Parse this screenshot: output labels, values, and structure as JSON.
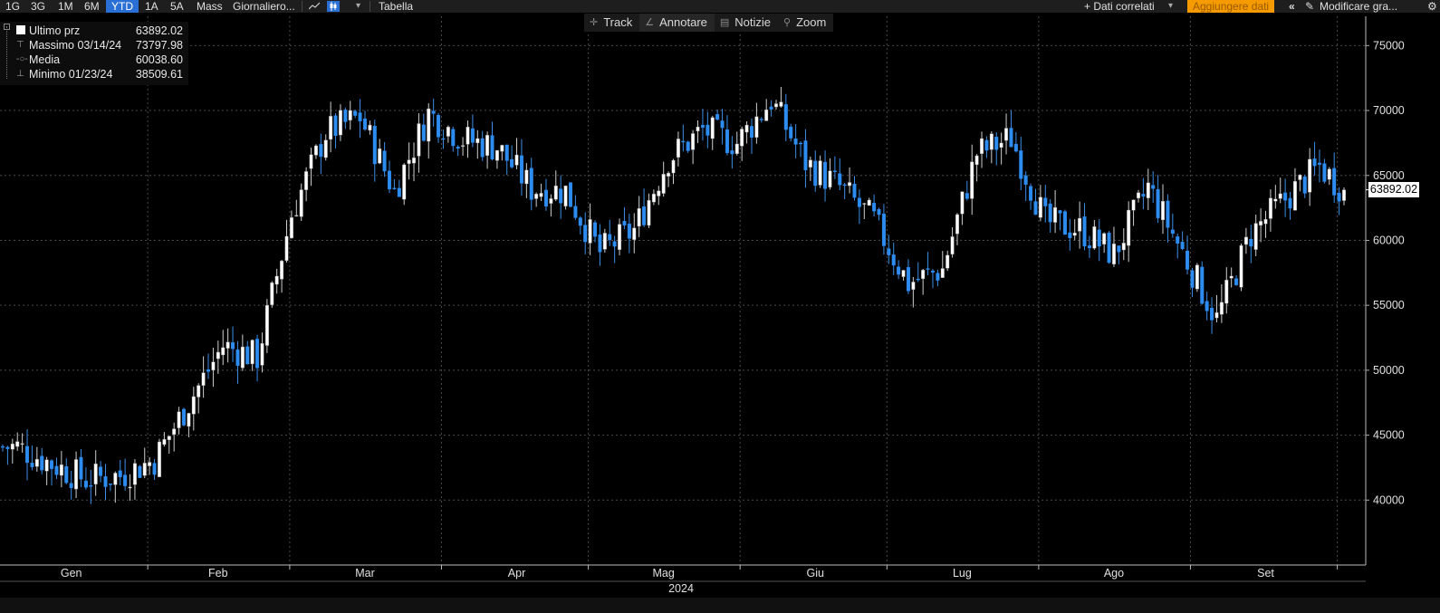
{
  "topbar": {
    "periods": [
      "1G",
      "3G",
      "1M",
      "6M",
      "YTD",
      "1A",
      "5A",
      "Mass"
    ],
    "selected_period": "YTD",
    "frequency": "Giornaliero...",
    "dropdown_caret": "▾",
    "table": "Tabella",
    "related_data": "+ Dati correlati",
    "add_data": "Aggiungere dati",
    "edit_chart": "Modificare gra...",
    "icons": [
      "line-chart-icon",
      "candlestick-icon",
      "collapse-icon",
      "pencil-icon",
      "gear-icon"
    ]
  },
  "toolbar": {
    "items": [
      {
        "label": "Track",
        "icon": "crosshair-icon"
      },
      {
        "label": "Annotare",
        "icon": "pen-icon"
      },
      {
        "label": "Notizie",
        "icon": "news-icon"
      },
      {
        "label": "Zoom",
        "icon": "magnifier-icon"
      }
    ]
  },
  "legend": {
    "last_label": "Ultimo prz",
    "last_value": "63892.02",
    "high_label": "Massimo 03/14/24",
    "high_value": "73797.98",
    "avg_label": "Media",
    "avg_value": "60038.60",
    "low_label": "Minimo 01/23/24",
    "low_value": "38509.61"
  },
  "last_price_box": "63892.02",
  "colors": {
    "up": "#ffffff",
    "down": "#2d8cf0",
    "grid": "#4a4a4a",
    "background": "#000000"
  },
  "chart_data": {
    "type": "candlestick",
    "y_ticks": [
      40000,
      45000,
      50000,
      55000,
      60000,
      65000,
      70000,
      75000
    ],
    "ylim": [
      35000,
      76000
    ],
    "month_labels": [
      "Gen",
      "Feb",
      "Mar",
      "Apr",
      "Mag",
      "Giu",
      "Lug",
      "Ago",
      "Set"
    ],
    "year_label": "2024",
    "grid": true,
    "last_price": 63892.02,
    "weekly_closes": [
      [
        "01-05",
        44100
      ],
      [
        "01-12",
        42800
      ],
      [
        "01-19",
        41600
      ],
      [
        "01-26",
        41900
      ],
      [
        "02-02",
        43100
      ],
      [
        "02-09",
        47500
      ],
      [
        "02-16",
        51900
      ],
      [
        "02-23",
        51000
      ],
      [
        "03-01",
        62000
      ],
      [
        "03-08",
        68300
      ],
      [
        "03-15",
        69500
      ],
      [
        "03-22",
        63800
      ],
      [
        "03-29",
        69800
      ],
      [
        "04-05",
        67800
      ],
      [
        "04-12",
        67200
      ],
      [
        "04-19",
        64000
      ],
      [
        "04-26",
        63800
      ],
      [
        "05-03",
        59100
      ],
      [
        "05-10",
        60800
      ],
      [
        "05-17",
        66300
      ],
      [
        "05-24",
        68500
      ],
      [
        "05-31",
        67500
      ],
      [
        "06-07",
        70800
      ],
      [
        "06-14",
        66000
      ],
      [
        "06-21",
        64100
      ],
      [
        "06-28",
        61500
      ],
      [
        "07-05",
        56700
      ],
      [
        "07-12",
        57800
      ],
      [
        "07-19",
        66700
      ],
      [
        "07-26",
        67900
      ],
      [
        "08-02",
        61400
      ],
      [
        "08-09",
        60900
      ],
      [
        "08-16",
        58900
      ],
      [
        "08-23",
        64100
      ],
      [
        "08-30",
        59100
      ],
      [
        "09-06",
        53900
      ],
      [
        "09-13",
        60500
      ],
      [
        "09-20",
        63200
      ],
      [
        "09-27",
        65700
      ],
      [
        "10-02",
        63892.02
      ]
    ]
  }
}
